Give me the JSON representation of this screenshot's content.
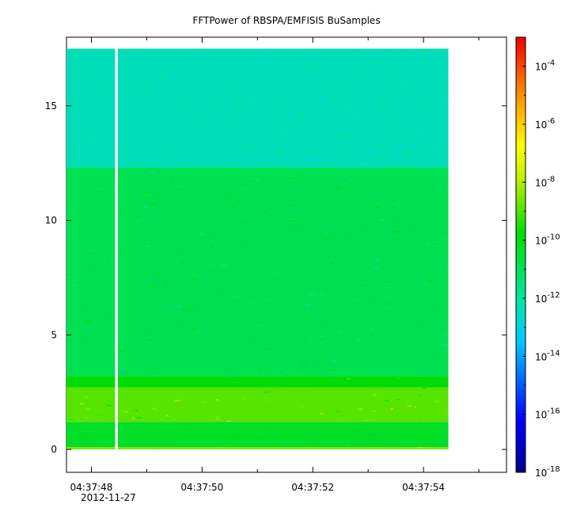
{
  "chart_data": {
    "type": "heatmap",
    "title": "FFTPower of RBSPA/EMFISIS  BuSamples",
    "xlabel": "",
    "ylabel": "",
    "ylim": [
      -1,
      18
    ],
    "xlim_seconds": [
      47.55,
      55.5
    ],
    "data_x_range_seconds": [
      47.55,
      54.45
    ],
    "data_y_max": 17.5,
    "gap_at_seconds": 48.45,
    "x_ticks": [
      {
        "label": "04:37:48",
        "seconds": 48
      },
      {
        "label": "04:37:50",
        "seconds": 50
      },
      {
        "label": "04:37:52",
        "seconds": 52
      },
      {
        "label": "04:37:54",
        "seconds": 54
      }
    ],
    "x_date_label": "2012-11-27",
    "y_ticks": [
      "0",
      "5",
      "10",
      "15"
    ],
    "y_tick_values": [
      0,
      5,
      10,
      15
    ],
    "colorbar": {
      "scale": "log",
      "range": [
        1e-18,
        0.001
      ],
      "tick_values": [
        1e-18,
        1e-16,
        1e-14,
        1e-12,
        1e-10,
        1e-08,
        1e-06,
        0.0001
      ],
      "tick_base": "10",
      "tick_exponents": [
        "-18",
        "-16",
        "-14",
        "-12",
        "-10",
        "-8",
        "-6",
        "-4"
      ]
    },
    "bands": [
      {
        "ymin": 12.3,
        "ymax": 17.5,
        "log_power": -12.4
      },
      {
        "ymin": 3.2,
        "ymax": 12.3,
        "log_power": -10.9
      },
      {
        "ymin": 2.7,
        "ymax": 3.2,
        "log_power": -9.8
      },
      {
        "ymin": 1.2,
        "ymax": 2.7,
        "log_power": -8.9
      },
      {
        "ymin": 0.1,
        "ymax": 1.2,
        "log_power": -10.3
      },
      {
        "ymin": 0.0,
        "ymax": 0.1,
        "log_power": -8.6
      }
    ]
  }
}
